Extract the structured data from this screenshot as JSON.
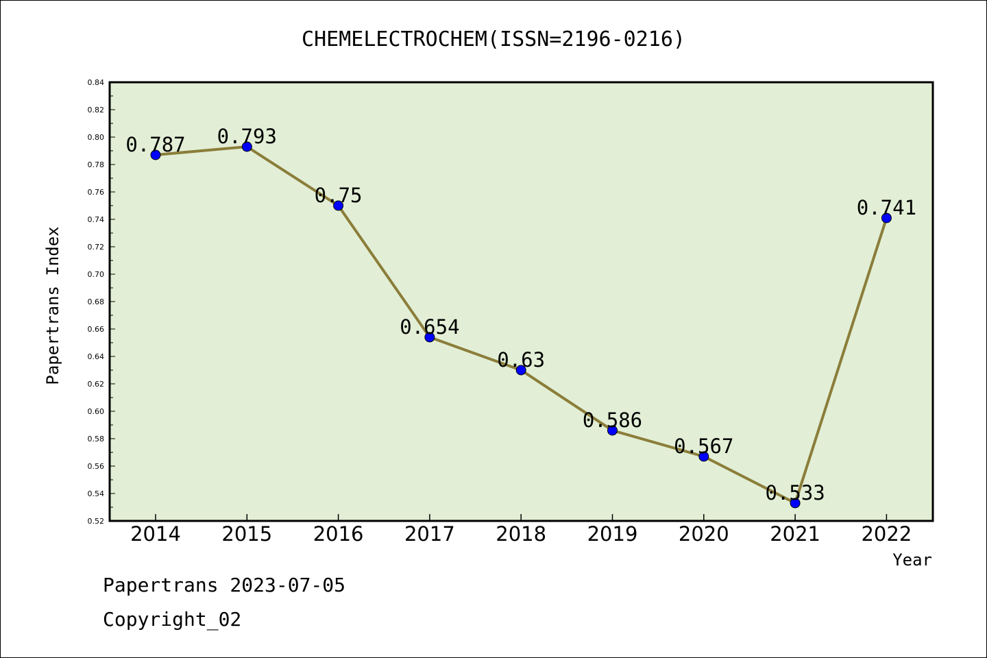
{
  "chart_data": {
    "type": "line",
    "title": "CHEMELECTROCHEM(ISSN=2196-0216)",
    "xlabel": "Year",
    "ylabel": "Papertrans Index",
    "categories": [
      "2014",
      "2015",
      "2016",
      "2017",
      "2018",
      "2019",
      "2020",
      "2021",
      "2022"
    ],
    "series": [
      {
        "values": [
          0.787,
          0.793,
          0.75,
          0.654,
          0.63,
          0.586,
          0.567,
          0.533,
          0.741
        ],
        "labels": [
          "0.787",
          "0.793",
          "0.75",
          "0.654",
          "0.63",
          "0.586",
          "0.567",
          "0.533",
          "0.741"
        ]
      }
    ],
    "ylim": [
      0.52,
      0.84
    ],
    "yticks": [
      "0.52",
      "0.54",
      "0.56",
      "0.58",
      "0.60",
      "0.62",
      "0.64",
      "0.66",
      "0.68",
      "0.70",
      "0.72",
      "0.74",
      "0.76",
      "0.78",
      "0.80",
      "0.82",
      "0.84"
    ],
    "grid": false,
    "colors": {
      "plot_background": "#e2efd6",
      "line": "#8b7d3a",
      "marker": "#0000ff"
    }
  },
  "footer": {
    "line1": "Papertrans 2023-07-05",
    "line2": "Copyright_02"
  }
}
